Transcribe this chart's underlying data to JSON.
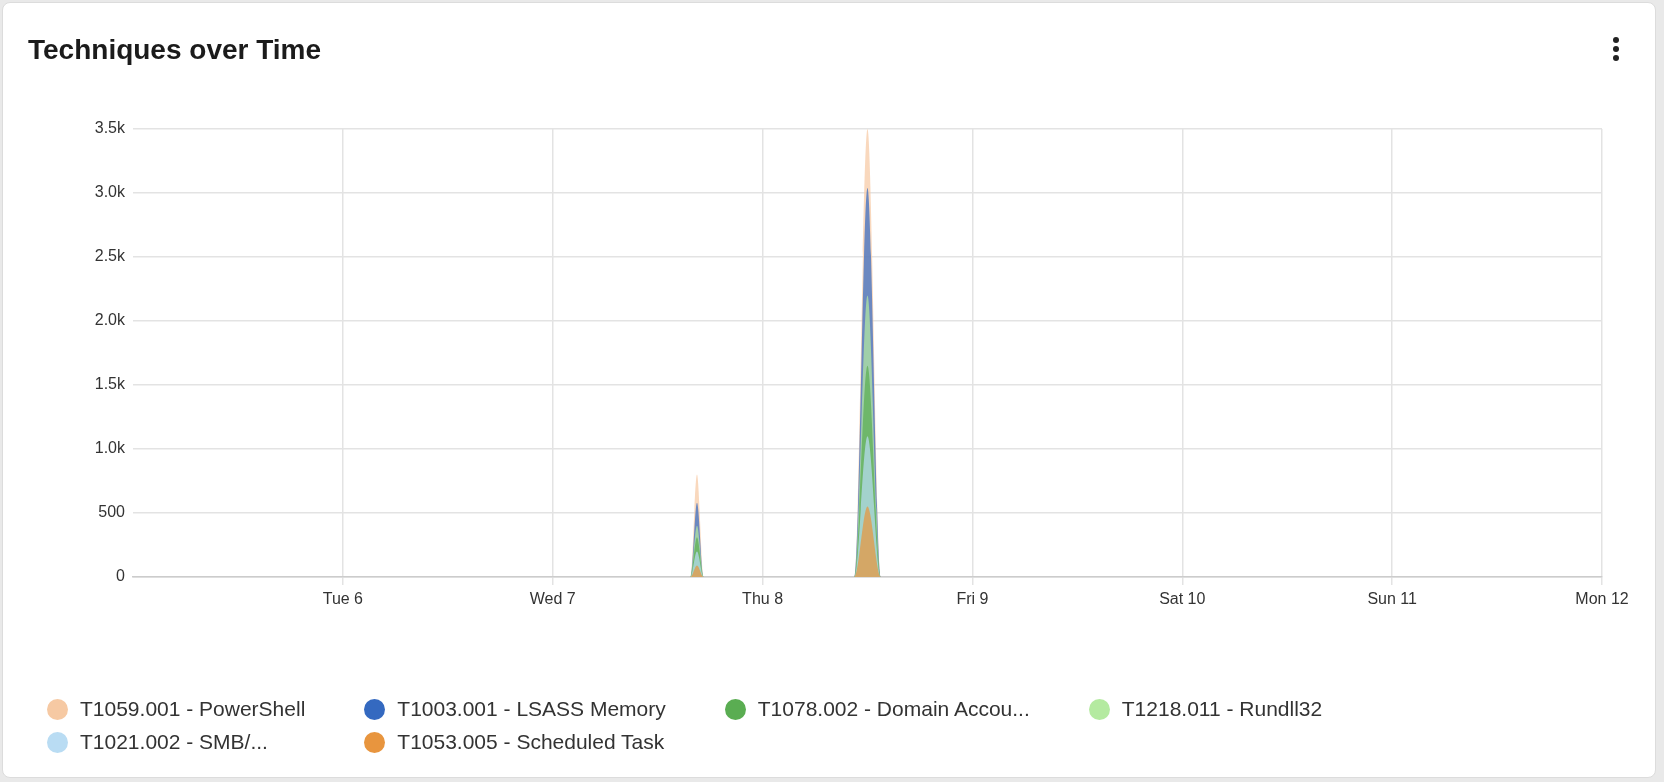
{
  "chart_data": {
    "type": "area",
    "title": "Techniques over Time",
    "x": [
      "--02-05T00:00",
      "--02-07T15:45",
      "--02-07T16:30",
      "--02-07T17:15",
      "--02-08T10:30",
      "--02-08T12:00",
      "--02-08T13:30",
      "--02-12T00:00"
    ],
    "xlim": [
      "--02-05",
      "--02-12"
    ],
    "xticks": [
      {
        "value": "--02-06",
        "label": "Tue 6"
      },
      {
        "value": "--02-07",
        "label": "Wed 7"
      },
      {
        "value": "--02-08",
        "label": "Thu 8"
      },
      {
        "value": "--02-09",
        "label": "Fri 9"
      },
      {
        "value": "--02-10",
        "label": "Sat 10"
      },
      {
        "value": "--02-11",
        "label": "Sun 11"
      },
      {
        "value": "--02-12",
        "label": "Mon 12"
      }
    ],
    "ylim": [
      0,
      3500
    ],
    "yticks": [
      0,
      500,
      {
        "value": 1000,
        "label": "1.0k"
      },
      {
        "value": 1500,
        "label": "1.5k"
      },
      {
        "value": 2000,
        "label": "2.0k"
      },
      {
        "value": 2500,
        "label": "2.5k"
      },
      {
        "value": 3000,
        "label": "3.0k"
      },
      {
        "value": 3500,
        "label": "3.5k"
      }
    ],
    "series": [
      {
        "name": "T1059.001 - PowerShell",
        "color": "#f6c9a3",
        "values": [
          0,
          0,
          800,
          0,
          0,
          3500,
          0,
          0
        ]
      },
      {
        "name": "T1003.001 - LSASS Memory",
        "color": "#3469c0",
        "values": [
          0,
          0,
          580,
          0,
          0,
          3040,
          0,
          0
        ]
      },
      {
        "name": "T1078.002 - Domain Accou...",
        "color": "#5aad52",
        "values": [
          0,
          0,
          310,
          0,
          0,
          1650,
          0,
          0
        ]
      },
      {
        "name": "T1218.011 - Rundll32",
        "color": "#b4eaa0",
        "values": [
          0,
          0,
          400,
          0,
          0,
          2200,
          0,
          0
        ]
      },
      {
        "name": "T1021.002 - SMB/...",
        "color": "#b9dcf3",
        "values": [
          0,
          0,
          200,
          0,
          0,
          1100,
          0,
          0
        ]
      },
      {
        "name": "T1053.005 - Scheduled Task",
        "color": "#e8953e",
        "values": [
          0,
          0,
          90,
          0,
          0,
          550,
          0,
          0
        ]
      }
    ],
    "grid": true,
    "legend": "bottom"
  }
}
